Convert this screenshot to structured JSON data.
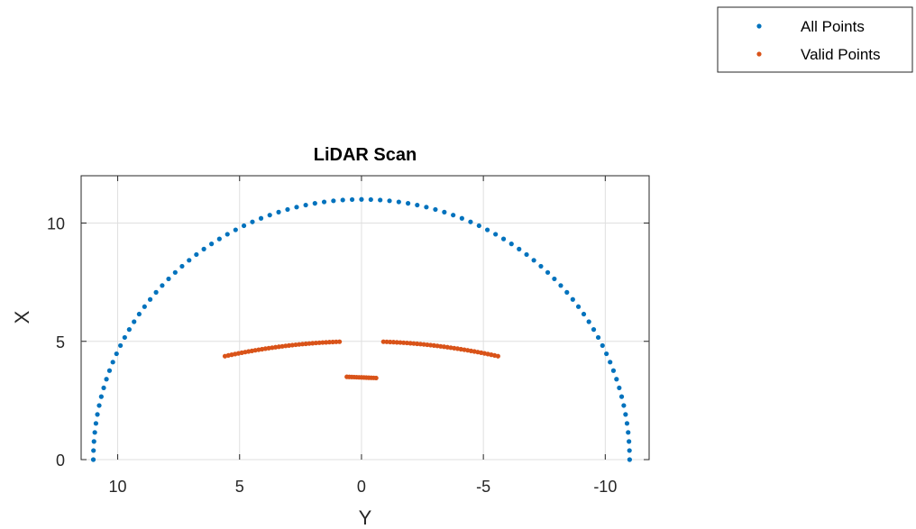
{
  "chart_data": {
    "type": "scatter",
    "title": "LiDAR Scan",
    "xlabel": "Y",
    "ylabel": "X",
    "xlim": [
      11.5,
      -11.8
    ],
    "ylim": [
      0,
      12
    ],
    "x_reversed": true,
    "x_ticks": [
      10,
      5,
      0,
      -5,
      -10
    ],
    "x_tick_labels": [
      "10",
      "5",
      "0",
      "-5",
      "-10"
    ],
    "y_ticks": [
      0,
      5,
      10
    ],
    "y_tick_labels": [
      "0",
      "5",
      "10"
    ],
    "grid": true,
    "legend_position": "top-right outside",
    "series": [
      {
        "name": "All Points",
        "color": "#0072BD",
        "marker": "dot",
        "arc": {
          "range": 11.0,
          "angle_start_deg": 0,
          "angle_end_deg": 180,
          "step_deg": 2
        },
        "notes": "range 11 at ±90°, visible only where not overlaid"
      },
      {
        "name": "Valid Points",
        "color": "#D95319",
        "marker": "dot",
        "segments": [
          {
            "kind": "curve",
            "y_from": 5.6,
            "y_to": 0.9,
            "x_peak": 5.0,
            "y_peak": 0
          },
          {
            "kind": "curve",
            "y_from": -0.9,
            "y_to": -5.6,
            "x_peak": 5.0,
            "y_peak": 0
          },
          {
            "kind": "flat",
            "y_from": 0.6,
            "y_to": -0.6,
            "x_values": [
              3.5,
              3.45
            ]
          }
        ]
      }
    ]
  }
}
